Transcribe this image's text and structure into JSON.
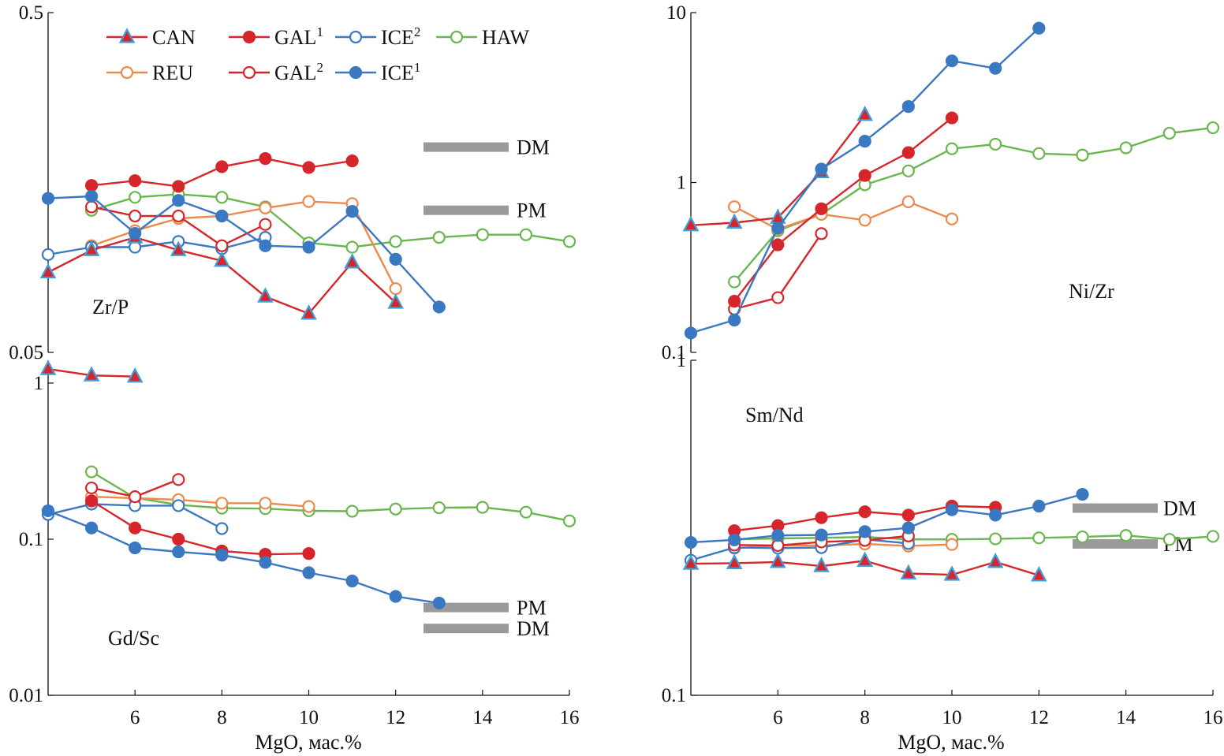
{
  "figure": {
    "xlabel_left": "MgO, мас.%",
    "xlabel_right": "MgO, мас.%",
    "colors": {
      "red": "#d7262b",
      "blue": "#3a78c2",
      "green": "#6ab64e",
      "orange": "#ec8a4e",
      "ref_bar": "#9a9a9a",
      "tri_edge": "#3aa1dc"
    }
  },
  "legend": [
    {
      "name": "CAN",
      "sup": "",
      "marker": "triangle"
    },
    {
      "name": "GAL",
      "sup": "1",
      "marker": "filled-red"
    },
    {
      "name": "ICE",
      "sup": "2",
      "marker": "open-blue"
    },
    {
      "name": "HAW",
      "sup": "",
      "marker": "open-green"
    },
    {
      "name": "REU",
      "sup": "",
      "marker": "open-orange"
    },
    {
      "name": "GAL",
      "sup": "2",
      "marker": "open-red"
    },
    {
      "name": "ICE",
      "sup": "1",
      "marker": "filled-blue"
    }
  ],
  "chart_data": [
    {
      "id": "zrp",
      "type": "line",
      "label": "Zr/P",
      "yscale": "log",
      "xlim": [
        4,
        16
      ],
      "ylim": [
        0.05,
        0.5
      ],
      "yticks": [
        {
          "v": 0.5,
          "t": "0.5"
        },
        {
          "v": 0.05,
          "t": "0.05"
        }
      ],
      "xticks": [],
      "refs": [
        {
          "name": "DM",
          "value": 0.201
        },
        {
          "name": "PM",
          "value": 0.131
        }
      ],
      "series": [
        {
          "name": "CAN",
          "x": [
            4,
            5,
            6,
            7,
            8,
            9,
            10,
            11,
            12
          ],
          "y": [
            0.086,
            0.1,
            0.109,
            0.1,
            0.093,
            0.073,
            0.065,
            0.092,
            0.07
          ]
        },
        {
          "name": "GAL1",
          "x": [
            5,
            6,
            7,
            8,
            9,
            10,
            11
          ],
          "y": [
            0.155,
            0.16,
            0.154,
            0.176,
            0.186,
            0.175,
            0.183
          ]
        },
        {
          "name": "ICE2",
          "x": [
            4,
            5,
            6,
            7,
            8,
            9
          ],
          "y": [
            0.097,
            0.102,
            0.102,
            0.106,
            0.101,
            0.109
          ]
        },
        {
          "name": "HAW",
          "x": [
            5,
            6,
            7,
            8,
            9,
            10,
            11,
            12,
            13,
            14,
            15,
            16
          ],
          "y": [
            0.131,
            0.143,
            0.146,
            0.143,
            0.134,
            0.105,
            0.102,
            0.106,
            0.109,
            0.111,
            0.111,
            0.106
          ]
        },
        {
          "name": "REU",
          "x": [
            5,
            6,
            7,
            8,
            9,
            10,
            11,
            12
          ],
          "y": [
            0.103,
            0.114,
            0.124,
            0.126,
            0.133,
            0.139,
            0.137,
            0.077
          ]
        },
        {
          "name": "GAL2",
          "x": [
            5,
            6,
            7,
            8,
            9
          ],
          "y": [
            0.134,
            0.126,
            0.126,
            0.103,
            0.119
          ]
        },
        {
          "name": "ICE1",
          "x": [
            4,
            5,
            6,
            7,
            8,
            9,
            10,
            11,
            12,
            13
          ],
          "y": [
            0.142,
            0.144,
            0.112,
            0.14,
            0.126,
            0.103,
            0.102,
            0.13,
            0.094,
            0.068
          ]
        }
      ]
    },
    {
      "id": "nizr",
      "type": "line",
      "label": "Ni/Zr",
      "yscale": "log",
      "xlim": [
        4,
        16
      ],
      "ylim": [
        0.1,
        10
      ],
      "yticks": [
        {
          "v": 10,
          "t": "10"
        },
        {
          "v": 1,
          "t": "1"
        },
        {
          "v": 0.1,
          "t": "0.1"
        }
      ],
      "xticks": [],
      "refs": [],
      "series": [
        {
          "name": "CAN",
          "x": [
            4,
            5,
            6,
            7,
            8
          ],
          "y": [
            0.56,
            0.58,
            0.62,
            1.15,
            2.5
          ]
        },
        {
          "name": "GAL1",
          "x": [
            5,
            6,
            7,
            8,
            9,
            10
          ],
          "y": [
            0.2,
            0.43,
            0.7,
            1.1,
            1.5,
            2.4
          ]
        },
        {
          "name": "HAW",
          "x": [
            5,
            6,
            7,
            8,
            9,
            10,
            11,
            12,
            13,
            14,
            15,
            16
          ],
          "y": [
            0.26,
            0.52,
            0.65,
            0.97,
            1.17,
            1.58,
            1.68,
            1.48,
            1.45,
            1.6,
            1.95,
            2.1
          ]
        },
        {
          "name": "REU",
          "x": [
            5,
            6,
            7,
            8,
            9,
            10
          ],
          "y": [
            0.72,
            0.53,
            0.65,
            0.6,
            0.77,
            0.61
          ]
        },
        {
          "name": "GAL2",
          "x": [
            5,
            6,
            7
          ],
          "y": [
            0.18,
            0.21,
            0.5
          ]
        },
        {
          "name": "ICE1",
          "x": [
            4,
            5,
            6,
            7,
            8,
            9,
            10,
            11,
            12
          ],
          "y": [
            0.13,
            0.155,
            0.54,
            1.2,
            1.75,
            2.8,
            5.2,
            4.7,
            8.1
          ]
        }
      ]
    },
    {
      "id": "gdsc",
      "type": "line",
      "label": "Gd/Sc",
      "yscale": "log",
      "xlim": [
        4,
        16
      ],
      "ylim": [
        0.01,
        1.4
      ],
      "yticks": [
        {
          "v": 1,
          "t": "1"
        },
        {
          "v": 0.1,
          "t": "0.1"
        },
        {
          "v": 0.01,
          "t": "0.01"
        }
      ],
      "xticks": [
        6,
        8,
        10,
        12,
        14,
        16
      ],
      "refs": [
        {
          "name": "PM",
          "value": 0.0365
        },
        {
          "name": "DM",
          "value": 0.0268
        }
      ],
      "series": [
        {
          "name": "CAN",
          "x": [
            4,
            5,
            6
          ],
          "y": [
            1.23,
            1.12,
            1.1
          ]
        },
        {
          "name": "GAL1",
          "x": [
            5,
            6,
            7,
            8,
            9,
            10
          ],
          "y": [
            0.176,
            0.118,
            0.1,
            0.084,
            0.08,
            0.081
          ]
        },
        {
          "name": "ICE2",
          "x": [
            4,
            5,
            6,
            7,
            8
          ],
          "y": [
            0.144,
            0.168,
            0.164,
            0.164,
            0.117
          ]
        },
        {
          "name": "HAW",
          "x": [
            5,
            6,
            7,
            8,
            9,
            10,
            11,
            12,
            13,
            14,
            15,
            16
          ],
          "y": [
            0.27,
            0.184,
            0.166,
            0.158,
            0.157,
            0.152,
            0.151,
            0.156,
            0.159,
            0.16,
            0.149,
            0.131
          ]
        },
        {
          "name": "REU",
          "x": [
            5,
            6,
            7,
            8,
            9,
            10
          ],
          "y": [
            0.187,
            0.183,
            0.179,
            0.17,
            0.17,
            0.162
          ]
        },
        {
          "name": "GAL2",
          "x": [
            5,
            6,
            7
          ],
          "y": [
            0.213,
            0.187,
            0.241
          ]
        },
        {
          "name": "ICE1",
          "x": [
            4,
            5,
            6,
            7,
            8,
            9,
            10,
            11,
            12,
            13
          ],
          "y": [
            0.152,
            0.118,
            0.088,
            0.083,
            0.079,
            0.071,
            0.061,
            0.054,
            0.043,
            0.039
          ]
        }
      ]
    },
    {
      "id": "smnd",
      "type": "line",
      "label": "Sm/Nd",
      "yscale": "log",
      "xlim": [
        4,
        16
      ],
      "ylim": [
        0.1,
        1
      ],
      "yticks": [
        {
          "v": 1,
          "t": "1"
        },
        {
          "v": 0.1,
          "t": "0.1"
        }
      ],
      "xticks": [
        6,
        8,
        10,
        12,
        14,
        16
      ],
      "refs": [
        {
          "name": "DM",
          "value": 0.362
        },
        {
          "name": "PM",
          "value": 0.283
        }
      ],
      "series": [
        {
          "name": "CAN",
          "x": [
            4,
            5,
            6,
            7,
            8,
            9,
            10,
            11,
            12
          ],
          "y": [
            0.247,
            0.248,
            0.25,
            0.243,
            0.252,
            0.231,
            0.229,
            0.25,
            0.228
          ]
        },
        {
          "name": "GAL1",
          "x": [
            5,
            6,
            7,
            8,
            9,
            10,
            11
          ],
          "y": [
            0.31,
            0.321,
            0.339,
            0.353,
            0.345,
            0.367,
            0.364
          ]
        },
        {
          "name": "ICE2",
          "x": [
            4,
            5,
            6,
            7,
            8,
            9
          ],
          "y": [
            0.253,
            0.276,
            0.275,
            0.276,
            0.292,
            0.284
          ]
        },
        {
          "name": "HAW",
          "x": [
            5,
            6,
            7,
            8,
            9,
            10,
            11,
            12,
            13,
            14,
            15,
            16
          ],
          "y": [
            0.292,
            0.294,
            0.295,
            0.297,
            0.292,
            0.292,
            0.293,
            0.295,
            0.297,
            0.3,
            0.292,
            0.298
          ]
        },
        {
          "name": "REU",
          "x": [
            5,
            6,
            7,
            8,
            9,
            10
          ],
          "y": [
            0.275,
            0.28,
            0.28,
            0.283,
            0.279,
            0.282
          ]
        },
        {
          "name": "GAL2",
          "x": [
            5,
            6,
            7,
            8,
            9
          ],
          "y": [
            0.281,
            0.28,
            0.287,
            0.29,
            0.299
          ]
        },
        {
          "name": "ICE1",
          "x": [
            4,
            5,
            6,
            7,
            8,
            9,
            10,
            11,
            12,
            13
          ],
          "y": [
            0.286,
            0.291,
            0.3,
            0.301,
            0.308,
            0.316,
            0.358,
            0.345,
            0.367,
            0.398
          ]
        }
      ]
    }
  ]
}
